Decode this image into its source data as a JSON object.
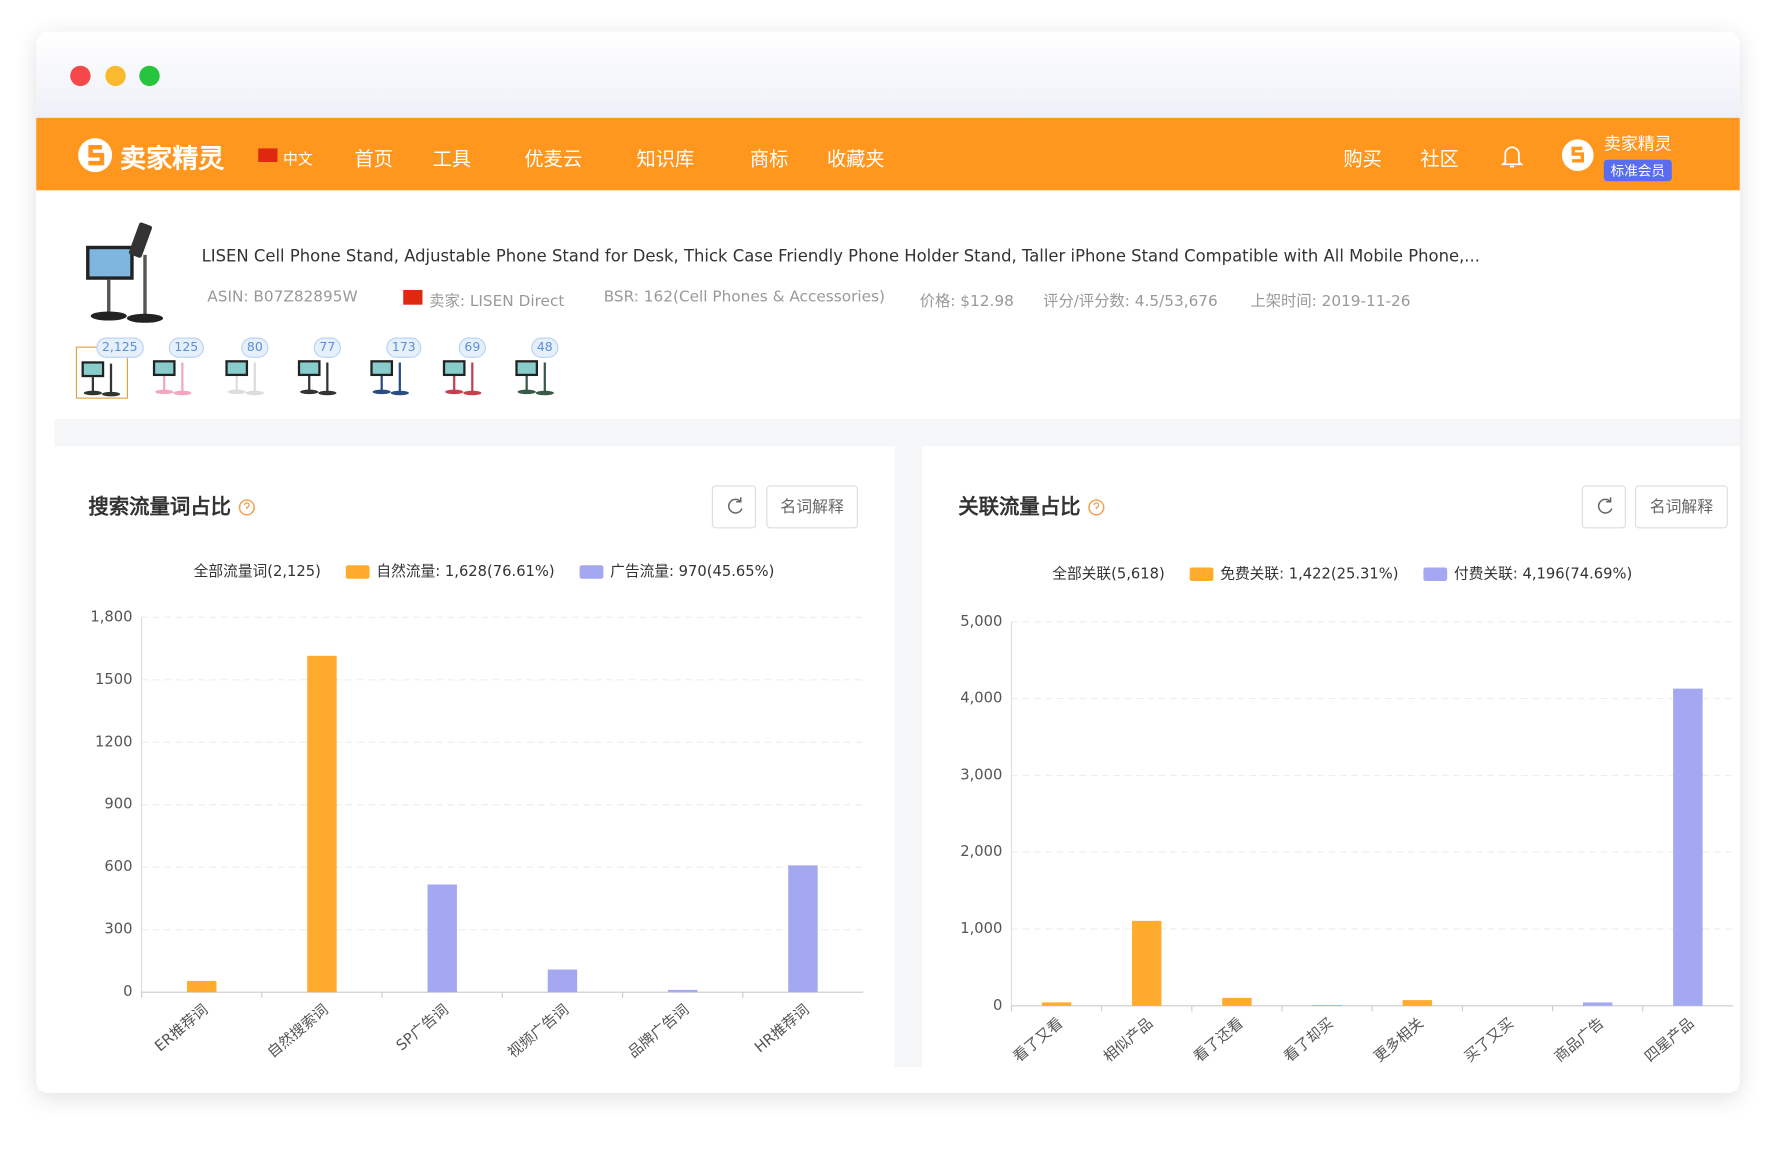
{
  "nav": {
    "logo": "卖家精灵",
    "lang": "中文",
    "items": [
      "首页",
      "工具",
      "优麦云",
      "知识库",
      "商标",
      "收藏夹"
    ],
    "right": [
      "购买",
      "社区"
    ],
    "user": "卖家精灵",
    "badge": "标准会员"
  },
  "product": {
    "title": "LISEN Cell Phone Stand, Adjustable Phone Stand for Desk, Thick Case Friendly Phone Holder Stand, Taller iPhone Stand Compatible with All Mobile Phone,...",
    "asin": "ASIN: B07Z82895W",
    "seller": "卖家: LISEN Direct",
    "bsr": "BSR: 162(Cell Phones & Accessories)",
    "price": "价格: $12.98",
    "rating": "评分/评分数: 4.5/53,676",
    "date": "上架时间: 2019-11-26",
    "variants": [
      "2,125",
      "125",
      "80",
      "77",
      "173",
      "69",
      "48"
    ]
  },
  "chart_data": [
    {
      "type": "bar",
      "title": "搜索流量词占比",
      "button": "名词解释",
      "legend_total": "全部流量词(2,125)",
      "categories": [
        "ER推荐词",
        "自然搜索词",
        "SP广告词",
        "视频广告词",
        "品牌广告词",
        "HR推荐词"
      ],
      "series": [
        {
          "name": "自然流量: 1,628(76.61%)",
          "color": "#ffab2e",
          "values": [
            54,
            1615,
            null,
            null,
            null,
            null
          ]
        },
        {
          "name": "广告流量: 970(45.65%)",
          "color": "#a3a8f0",
          "values": [
            null,
            null,
            517,
            109,
            11,
            609
          ]
        }
      ],
      "ylim": [
        0,
        1800
      ],
      "yticks": [
        0,
        300,
        600,
        900,
        1200,
        1500,
        {
          "value": 1800,
          "label": "1,800"
        }
      ],
      "grid": true
    },
    {
      "type": "bar",
      "title": "关联流量占比",
      "button": "名词解释",
      "legend_total": "全部关联(5,618)",
      "categories": [
        "看了又看",
        "相似产品",
        "看了还看",
        "看了却买",
        "更多相关",
        "买了又买",
        "商品广告",
        "四星产品"
      ],
      "series": [
        {
          "name": "免费关联: 1,422(25.31%)",
          "color": "#ffab2e",
          "values": [
            44,
            1106,
            103,
            10,
            74,
            0,
            null,
            null
          ]
        },
        {
          "name": "付费关联: 4,196(74.69%)",
          "color": "#a3a8f0",
          "values": [
            null,
            null,
            null,
            null,
            null,
            null,
            44,
            4130
          ]
        }
      ],
      "ylim": [
        0,
        5000
      ],
      "yticks": [
        0,
        {
          "value": 1000,
          "label": "1,000"
        },
        {
          "value": 2000,
          "label": "2,000"
        },
        {
          "value": 3000,
          "label": "3,000"
        },
        {
          "value": 4000,
          "label": "4,000"
        },
        {
          "value": 5000,
          "label": "5,000"
        }
      ],
      "grid": true
    }
  ]
}
